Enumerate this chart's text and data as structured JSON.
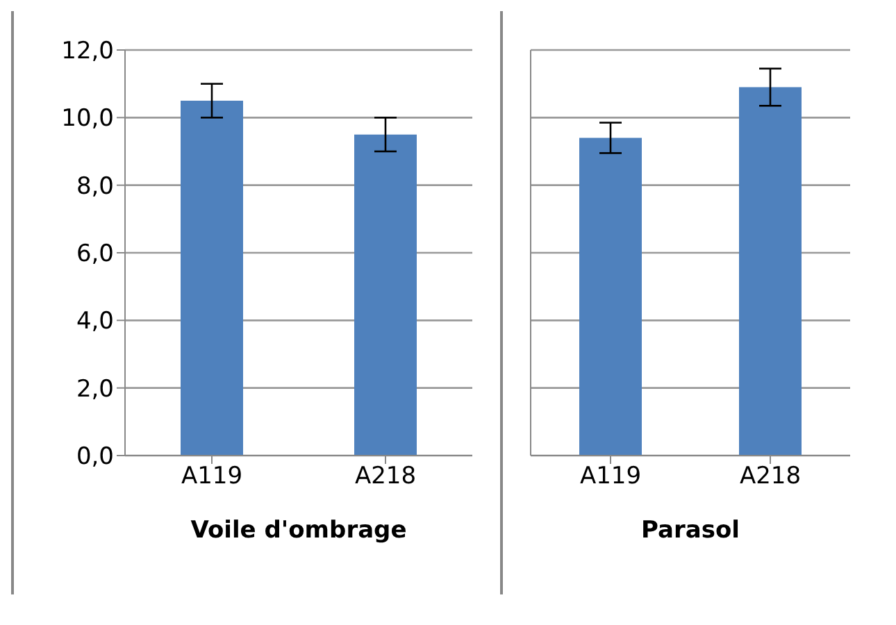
{
  "chart_data": [
    {
      "type": "bar",
      "xlabel": "Voile d'ombrage",
      "categories": [
        "A119",
        "A218"
      ],
      "values": [
        10.5,
        9.5
      ],
      "errors": [
        0.5,
        0.5
      ],
      "color": "#4f81bd",
      "ylim": [
        0,
        12
      ],
      "yticks": [
        {
          "value": 0,
          "label": "0,0"
        },
        {
          "value": 2,
          "label": "2,0"
        },
        {
          "value": 4,
          "label": "4,0"
        },
        {
          "value": 6,
          "label": "6,0"
        },
        {
          "value": 8,
          "label": "8,0"
        },
        {
          "value": 10,
          "label": "10,0"
        },
        {
          "value": 12,
          "label": "12,0"
        }
      ],
      "grid": "y"
    },
    {
      "type": "bar",
      "xlabel": "Parasol",
      "categories": [
        "A119",
        "A218"
      ],
      "values": [
        9.4,
        10.9
      ],
      "errors": [
        0.45,
        0.55
      ],
      "color": "#4f81bd",
      "ylim": [
        0,
        12
      ],
      "yticks": [
        0,
        2,
        4,
        6,
        8,
        10,
        12
      ],
      "grid": "y",
      "tick_labels": "x"
    }
  ]
}
